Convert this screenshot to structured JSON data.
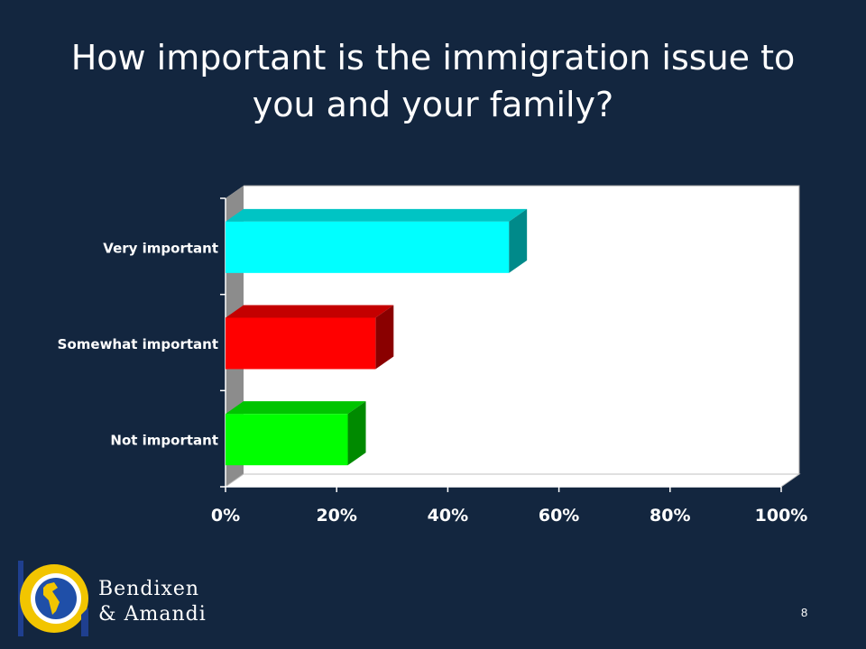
{
  "title": {
    "line1": "How important is the immigration issue to",
    "line2": "you and your family?"
  },
  "chart_data": {
    "type": "bar",
    "orientation": "horizontal",
    "style": "3d",
    "categories": [
      "Very important",
      "Somewhat important",
      "Not important"
    ],
    "values": [
      51,
      27,
      22
    ],
    "data_labels": [
      "51%",
      "27%",
      "22%"
    ],
    "colors": [
      "#00ffff",
      "#ff0000",
      "#00ff00"
    ],
    "side_colors": [
      "#008a8a",
      "#8a0000",
      "#008a00"
    ],
    "top_colors": [
      "#00c4c4",
      "#c40000",
      "#00c400"
    ],
    "xlim": [
      0,
      100
    ],
    "xticks": [
      0,
      20,
      40,
      60,
      80,
      100
    ],
    "xtick_labels": [
      "0%",
      "20%",
      "40%",
      "60%",
      "80%",
      "100%"
    ],
    "grid": false,
    "legend": "none"
  },
  "logo": {
    "line1": "Bendixen",
    "line2": "& Amandi"
  },
  "page_number": "8",
  "colors": {
    "background": "#13263f",
    "text": "#ffffff",
    "logo_gold": "#f2c500",
    "logo_blue": "#1f3f8f"
  }
}
